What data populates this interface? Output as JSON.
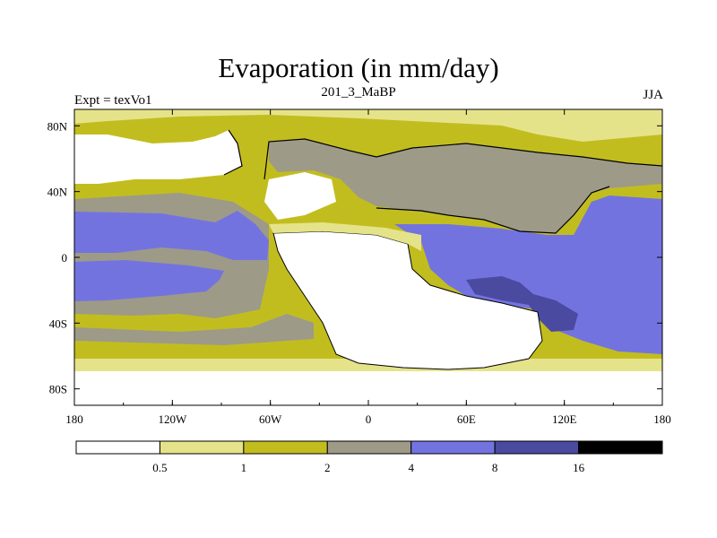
{
  "title": "Evaporation (in mm/day)",
  "experiment_label": "Expt = texVo1",
  "period_label": "201_3_MaBP",
  "season_label": "JJA",
  "axes": {
    "x_ticks": [
      "180",
      "120W",
      "60W",
      "0",
      "60E",
      "120E",
      "180"
    ],
    "y_ticks": [
      "80N",
      "40N",
      "0",
      "40S",
      "80S"
    ]
  },
  "colorbar": {
    "colors": [
      "#ffffff",
      "#e5e38a",
      "#c2bd1f",
      "#9d9a88",
      "#7373e0",
      "#4a4aa0",
      "#000000"
    ],
    "labels": [
      "0.5",
      "1",
      "2",
      "4",
      "8",
      "16"
    ]
  },
  "chart_data": {
    "type": "heatmap",
    "x_range": [
      -180,
      180
    ],
    "y_range": [
      -90,
      90
    ],
    "levels": [
      0.5,
      1,
      2,
      4,
      8,
      16
    ],
    "units": "mm/day"
  }
}
